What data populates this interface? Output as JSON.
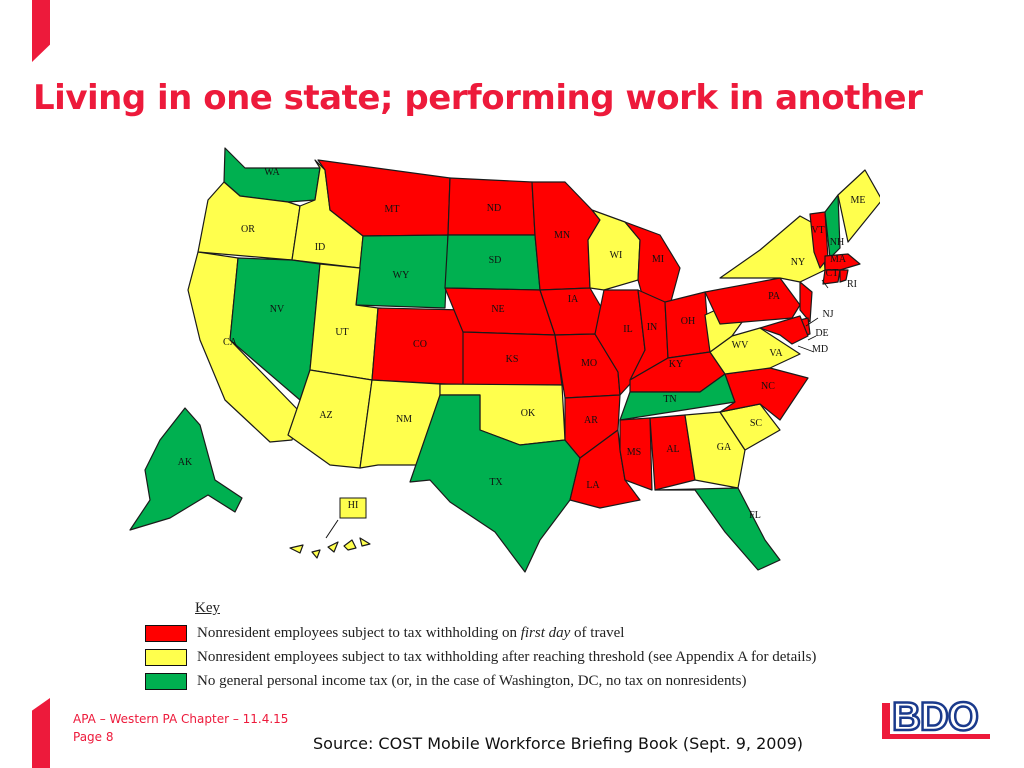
{
  "title": "Living in one state; performing work in another",
  "footer": {
    "event": "APA – Western PA Chapter – 11.4.15",
    "page": "Page 8",
    "source": "Source:  COST Mobile Workforce Briefing Book (Sept. 9, 2009)"
  },
  "logo": {
    "text": "BDO"
  },
  "colors": {
    "red": "#ff0000",
    "yellow": "#ffff4d",
    "green": "#00b050",
    "accent": "#ed1a3b"
  },
  "map": {
    "states": [
      {
        "abbr": "WA",
        "category": "green"
      },
      {
        "abbr": "OR",
        "category": "yellow"
      },
      {
        "abbr": "CA",
        "category": "yellow"
      },
      {
        "abbr": "ID",
        "category": "yellow"
      },
      {
        "abbr": "NV",
        "category": "green"
      },
      {
        "abbr": "MT",
        "category": "red"
      },
      {
        "abbr": "WY",
        "category": "green"
      },
      {
        "abbr": "UT",
        "category": "yellow"
      },
      {
        "abbr": "AZ",
        "category": "yellow"
      },
      {
        "abbr": "CO",
        "category": "red"
      },
      {
        "abbr": "NM",
        "category": "yellow"
      },
      {
        "abbr": "ND",
        "category": "red"
      },
      {
        "abbr": "SD",
        "category": "green"
      },
      {
        "abbr": "NE",
        "category": "red"
      },
      {
        "abbr": "KS",
        "category": "red"
      },
      {
        "abbr": "OK",
        "category": "yellow"
      },
      {
        "abbr": "TX",
        "category": "green"
      },
      {
        "abbr": "MN",
        "category": "red"
      },
      {
        "abbr": "IA",
        "category": "red"
      },
      {
        "abbr": "MO",
        "category": "red"
      },
      {
        "abbr": "AR",
        "category": "red"
      },
      {
        "abbr": "LA",
        "category": "red"
      },
      {
        "abbr": "WI",
        "category": "yellow"
      },
      {
        "abbr": "IL",
        "category": "red"
      },
      {
        "abbr": "MI",
        "category": "red"
      },
      {
        "abbr": "IN",
        "category": "red"
      },
      {
        "abbr": "OH",
        "category": "red"
      },
      {
        "abbr": "KY",
        "category": "red"
      },
      {
        "abbr": "TN",
        "category": "green"
      },
      {
        "abbr": "MS",
        "category": "red"
      },
      {
        "abbr": "AL",
        "category": "red"
      },
      {
        "abbr": "GA",
        "category": "yellow"
      },
      {
        "abbr": "FL",
        "category": "green"
      },
      {
        "abbr": "SC",
        "category": "yellow"
      },
      {
        "abbr": "NC",
        "category": "red"
      },
      {
        "abbr": "VA",
        "category": "yellow"
      },
      {
        "abbr": "WV",
        "category": "yellow"
      },
      {
        "abbr": "PA",
        "category": "red"
      },
      {
        "abbr": "NY",
        "category": "yellow"
      },
      {
        "abbr": "VT",
        "category": "red"
      },
      {
        "abbr": "NH",
        "category": "green"
      },
      {
        "abbr": "ME",
        "category": "yellow"
      },
      {
        "abbr": "MA",
        "category": "red"
      },
      {
        "abbr": "CT",
        "category": "red"
      },
      {
        "abbr": "RI",
        "category": "red"
      },
      {
        "abbr": "NJ",
        "category": "red"
      },
      {
        "abbr": "DE",
        "category": "red"
      },
      {
        "abbr": "MD",
        "category": "red"
      },
      {
        "abbr": "AK",
        "category": "green"
      },
      {
        "abbr": "HI",
        "category": "yellow"
      }
    ]
  },
  "key": {
    "title": "Key",
    "items": [
      {
        "category": "red",
        "text_before": "Nonresident employees subject to tax withholding on ",
        "emphasis": "first day",
        "text_after": " of travel"
      },
      {
        "category": "yellow",
        "text_before": "Nonresident employees subject to tax withholding after reaching threshold (see Appendix A for details)",
        "emphasis": "",
        "text_after": ""
      },
      {
        "category": "green",
        "text_before": "No general personal income tax (or, in the case of Washington, DC, no tax on nonresidents)",
        "emphasis": "",
        "text_after": ""
      }
    ]
  }
}
